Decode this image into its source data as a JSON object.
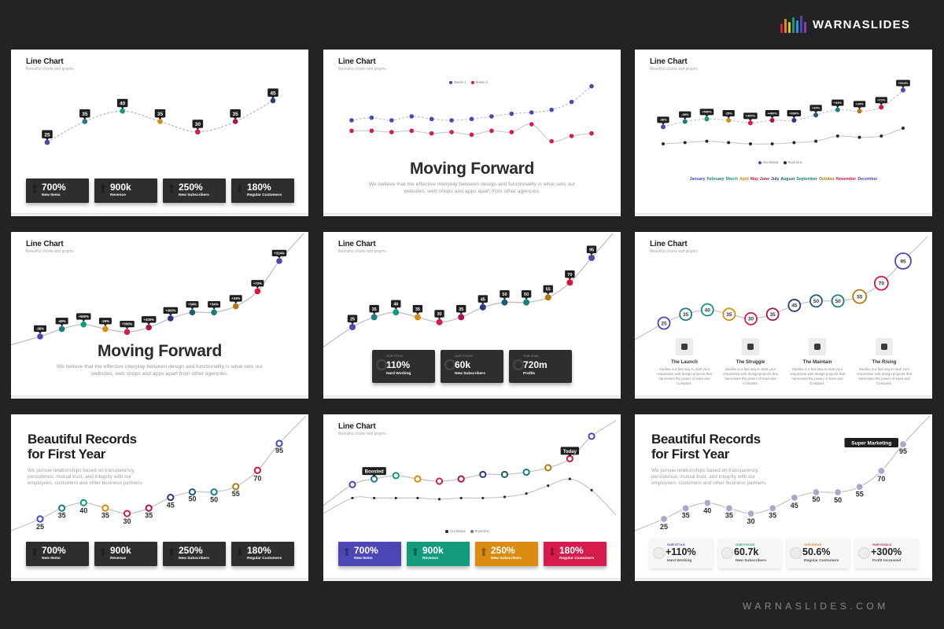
{
  "brand": {
    "name": "WARNASLIDES",
    "footer_url": "WARNASLIDES.COM"
  },
  "colors": {
    "background": "#232325",
    "palette": [
      "#4b48b5",
      "#1d7b85",
      "#129b7c",
      "#d98c11",
      "#d51c4d",
      "#a81552",
      "#2c3885",
      "#1f5b73",
      "#18807c",
      "#b07a12",
      "#d8143f"
    ],
    "series2": "#2b2b2b"
  },
  "months": [
    "January",
    "February",
    "March",
    "April",
    "May",
    "June",
    "July",
    "August",
    "September",
    "October",
    "November",
    "December"
  ],
  "slides": [
    {
      "id": "s1",
      "title": "Line Chart",
      "subtitle": "Beautiful charts and graphs",
      "chart_data": {
        "type": "line",
        "values": [
          25,
          35,
          40,
          35,
          30,
          35,
          45
        ],
        "labels": [
          "25",
          "35",
          "40",
          "35",
          "30",
          "35",
          "45"
        ]
      },
      "stats": [
        {
          "value": "700%",
          "label": "New Items"
        },
        {
          "value": "900k",
          "label": "Revenue"
        },
        {
          "value": "250%",
          "label": "New Subscribers"
        },
        {
          "value": "180%",
          "label": "Regular Customers"
        }
      ]
    },
    {
      "id": "s2",
      "title": "Line Chart",
      "subtitle": "Beautiful charts and graphs",
      "heading": "Moving Forward",
      "desc_lines": [
        "We believe that the effective interplay between design and functionality is what sets our",
        "websites, web shops and apps apart from other agencies."
      ],
      "legend": [
        "Series 1",
        "Series 2"
      ],
      "chart_data": {
        "type": "line",
        "series": [
          {
            "values": [
              30,
              32,
              30,
              33,
              31,
              30,
              31,
              33,
              35,
              36,
              38,
              44,
              56
            ]
          },
          {
            "values": [
              22,
              22,
              21,
              22,
              20,
              21,
              19,
              22,
              21,
              27,
              14,
              18,
              20
            ]
          }
        ]
      }
    },
    {
      "id": "s3",
      "title": "Line Chart",
      "subtitle": "Beautiful charts and graphs",
      "legend": [
        "Our Brand",
        "Rival One"
      ],
      "chart_data": {
        "type": "line",
        "categories": [
          "January",
          "February",
          "March",
          "April",
          "May",
          "June",
          "July",
          "August",
          "September",
          "October",
          "November",
          "December"
        ],
        "series": [
          {
            "name": "Our Brand",
            "values": [
              25,
              29,
              31,
              30,
              28,
              30,
              30,
              34,
              38,
              37,
              40,
              53
            ]
          },
          {
            "name": "Rival One",
            "values": [
              12,
              13,
              14,
              13,
              12,
              12,
              13,
              14,
              18,
              17,
              18,
              24
            ]
          }
        ],
        "labels": [
          "-38%",
          "-48%",
          "+550%",
          "-25%",
          "+300%",
          "+400%",
          "+390%",
          "+34%",
          "+34%",
          "+34%",
          "+72%",
          "+314%"
        ]
      }
    },
    {
      "id": "s4",
      "title": "Line Chart",
      "subtitle": "Beautiful charts and graphs",
      "heading": "Moving Forward",
      "desc_lines": [
        "We believe that the effective interplay between design and functionality is what sets our",
        "websites, web shops and apps apart from other agencies."
      ],
      "chart_data": {
        "type": "line",
        "values": [
          25,
          30,
          33,
          30,
          28,
          31,
          37,
          41,
          41,
          45,
          55,
          75
        ],
        "labels": [
          "-38%",
          "-48%",
          "+550%",
          "-25%",
          "+300%",
          "+400%",
          "+300%",
          "+34%",
          "+34%",
          "+34%",
          "+72%",
          "+314%"
        ]
      }
    },
    {
      "id": "s5",
      "title": "Line Chart",
      "subtitle": "Beautiful charts and graphs",
      "chart_data": {
        "type": "line",
        "values": [
          25,
          35,
          40,
          35,
          30,
          35,
          45,
          50,
          50,
          55,
          70,
          95
        ],
        "labels": [
          "25",
          "35",
          "40",
          "35",
          "30",
          "35",
          "45",
          "50",
          "50",
          "55",
          "70",
          "95"
        ]
      },
      "stats": [
        {
          "top": "OUR STYLE",
          "value": "110%",
          "label": "Hard Working"
        },
        {
          "top": "OUR FOCUS",
          "value": "60k",
          "label": "New Subscribers"
        },
        {
          "top": "OUR GOAL",
          "value": "720m",
          "label": "Profits"
        }
      ]
    },
    {
      "id": "s6",
      "title": "Line Chart",
      "subtitle": "Beautiful charts and graphs",
      "chart_data": {
        "type": "line",
        "values": [
          25,
          35,
          40,
          35,
          30,
          35,
          45,
          50,
          50,
          55,
          70,
          95
        ],
        "labels": [
          "25",
          "35",
          "40",
          "35",
          "30",
          "35",
          "45",
          "50",
          "50",
          "55",
          "70",
          "95"
        ]
      },
      "features": [
        {
          "title": "The Launch",
          "desc": "Studies is a fast way to start your responsive web design projects that harnesses the power of Sass and Compass."
        },
        {
          "title": "The Struggle",
          "desc": "Studies is a fast way to start your responsive web design projects that harnesses the power of Sass and Compass."
        },
        {
          "title": "The Maintain",
          "desc": "Studies is a fast way to start your responsive web design projects that harnesses the power of Sass and Compass."
        },
        {
          "title": "The Rising",
          "desc": "Studies is a fast way to start your responsive web design projects that harnesses the power of Sass and Compass."
        }
      ]
    },
    {
      "id": "s7",
      "heading_lines": [
        "Beautiful Records",
        "for First Year"
      ],
      "desc": "We pursue relationships based on transparency, persistence, mutual trust, and integrity with our employees, customers and other business partners.",
      "chart_data": {
        "type": "line",
        "values": [
          25,
          35,
          40,
          35,
          30,
          35,
          45,
          50,
          50,
          55,
          70,
          95
        ],
        "labels": [
          "25",
          "35",
          "40",
          "35",
          "30",
          "35",
          "45",
          "50",
          "50",
          "55",
          "70",
          "95"
        ]
      },
      "stats": [
        {
          "value": "700%",
          "label": "New Items"
        },
        {
          "value": "900k",
          "label": "Revenue"
        },
        {
          "value": "250%",
          "label": "New Subscribers"
        },
        {
          "value": "180%",
          "label": "Regular Customers"
        }
      ]
    },
    {
      "id": "s8",
      "title": "Line Chart",
      "subtitle": "Beautiful charts and graphs",
      "legend": [
        "Our Brand",
        "Rival One"
      ],
      "callouts": [
        "Boosted",
        "Today"
      ],
      "chart_data": {
        "type": "line",
        "series": [
          {
            "name": "Our Brand",
            "values": [
              25,
              30,
              33,
              30,
              28,
              30,
              34,
              34,
              36,
              40,
              48,
              68
            ]
          },
          {
            "name": "Rival One",
            "values": [
              13,
              13,
              13,
              13,
              12,
              13,
              13,
              14,
              17,
              24,
              30,
              20
            ]
          }
        ]
      },
      "stats": [
        {
          "value": "700%",
          "label": "New Items",
          "color": "#4b48b5"
        },
        {
          "value": "900k",
          "label": "Revenue",
          "color": "#129b7c"
        },
        {
          "value": "250%",
          "label": "New Subscribers",
          "color": "#d98c11"
        },
        {
          "value": "180%",
          "label": "Regular Customers",
          "color": "#d51c4d"
        }
      ]
    },
    {
      "id": "s9",
      "heading_lines": [
        "Beautiful Records",
        "for First Year"
      ],
      "desc": "We pursue relationships based on transparency, persistence, mutual trust, and integrity with our employees, customers and other business partners.",
      "callout": "Super Marketing",
      "chart_data": {
        "type": "line",
        "values": [
          25,
          35,
          40,
          35,
          30,
          35,
          45,
          50,
          50,
          55,
          70,
          95
        ],
        "labels": [
          "25",
          "35",
          "40",
          "35",
          "30",
          "35",
          "45",
          "50",
          "50",
          "55",
          "70",
          "95"
        ]
      },
      "stats": [
        {
          "top": "OUR STYLE",
          "value": "+110%",
          "label": "Hard Working",
          "color": "#4b48b5"
        },
        {
          "top": "OUR FOCUS",
          "value": "60.7k",
          "label": "New Subscribers",
          "color": "#129b7c"
        },
        {
          "top": "OUR IDEAS",
          "value": "50.6%",
          "label": "Regular Customers",
          "color": "#d98c11"
        },
        {
          "top": "OUR GOALS",
          "value": "+300%",
          "label": "Profit Increased",
          "color": "#d51c4d"
        }
      ]
    }
  ]
}
